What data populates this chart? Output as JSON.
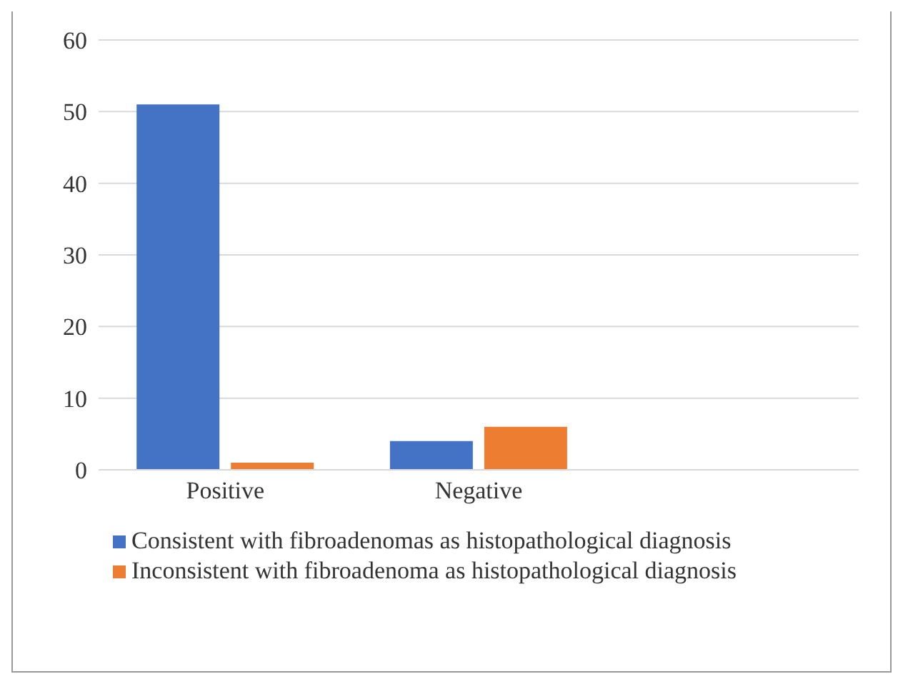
{
  "chart_data": {
    "type": "bar",
    "categories": [
      "Positive",
      "Negative",
      null
    ],
    "series": [
      {
        "name": "Consistent with fibroadenomas as histopathological diagnosis",
        "color": "#4472c4",
        "values": [
          51,
          4,
          null
        ]
      },
      {
        "name": "Inconsistent with fibroadenoma as histopathological diagnosis",
        "color": "#ed7d31",
        "values": [
          1,
          6,
          null
        ]
      }
    ],
    "ylim": [
      0,
      60
    ],
    "yticks": [
      0,
      10,
      20,
      30,
      40,
      50,
      60
    ],
    "grid": "y",
    "legend": "bottom"
  }
}
